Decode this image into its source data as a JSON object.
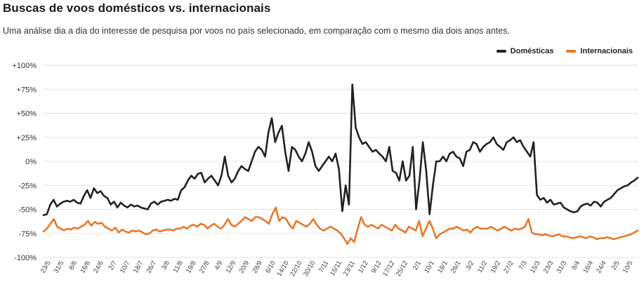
{
  "title": "Buscas de voos domésticos vs. internacionais",
  "subtitle": "Uma análise dia a dia do interesse de pesquisa por voos no país selecionado, em comparação com o mesmo dia dois anos antes.",
  "colors": {
    "domestic": "#222222",
    "international": "#e8782a",
    "grid": "#e2e2e2"
  },
  "chart_data": {
    "type": "line",
    "title": "Buscas de voos domésticos vs. internacionais",
    "subtitle": "Uma análise dia a dia do interesse de pesquisa por voos no país selecionado, em comparação com o mesmo dia dois anos antes.",
    "xlabel": "",
    "ylabel": "",
    "ylim": [
      -100,
      100
    ],
    "y_ticks": [
      100,
      75,
      50,
      25,
      0,
      -25,
      -50,
      -75,
      -100
    ],
    "y_tick_labels": [
      "+100%",
      "+75%",
      "+50%",
      "+25%",
      "0%",
      "-25%",
      "-50%",
      "-75%",
      "-100%"
    ],
    "x_tick_labels": [
      "23/5",
      "31/5",
      "8/6",
      "16/6",
      "24/6",
      "2/7",
      "10/7",
      "18/7",
      "26/7",
      "3/8",
      "11/8",
      "19/8",
      "27/8",
      "4/9",
      "12/9",
      "20/9",
      "28/9",
      "6/10",
      "14/10",
      "22/10",
      "30/10",
      "7/11",
      "15/11",
      "23/11",
      "1/12",
      "9/12",
      "17/12",
      "25/12",
      "2/1",
      "10/1",
      "18/1",
      "26/1",
      "3/2",
      "11/2",
      "19/2",
      "27/2",
      "7/3",
      "15/3",
      "23/3",
      "31/3",
      "8/4",
      "16/4",
      "24/4",
      "2/5",
      "10/5"
    ],
    "grid": true,
    "legend_position": "top-right",
    "series": [
      {
        "name": "Domésticas",
        "values": [
          -56,
          -55,
          -45,
          -40,
          -47,
          -44,
          -42,
          -41,
          -42,
          -40,
          -43,
          -44,
          -36,
          -30,
          -38,
          -28,
          -33,
          -31,
          -36,
          -38,
          -45,
          -42,
          -48,
          -43,
          -46,
          -48,
          -45,
          -47,
          -46,
          -48,
          -49,
          -50,
          -44,
          -42,
          -45,
          -42,
          -41,
          -40,
          -41,
          -39,
          -40,
          -30,
          -27,
          -20,
          -15,
          -18,
          -13,
          -12,
          -22,
          -18,
          -15,
          -20,
          -25,
          -15,
          5,
          -15,
          -22,
          -18,
          -10,
          -5,
          -8,
          -10,
          0,
          10,
          15,
          12,
          5,
          30,
          45,
          20,
          30,
          37,
          10,
          -10,
          15,
          12,
          5,
          0,
          8,
          20,
          10,
          -5,
          -10,
          -5,
          0,
          5,
          0,
          8,
          -8,
          -52,
          -25,
          -45,
          80,
          35,
          25,
          18,
          20,
          15,
          10,
          12,
          8,
          5,
          0,
          15,
          -10,
          -12,
          -20,
          0,
          -20,
          -15,
          15,
          -50,
          -20,
          20,
          -10,
          -55,
          -25,
          0,
          0,
          5,
          0,
          8,
          10,
          5,
          3,
          -5,
          10,
          12,
          20,
          18,
          10,
          15,
          18,
          20,
          25,
          18,
          15,
          12,
          20,
          22,
          25,
          20,
          22,
          15,
          10,
          5,
          20,
          -35,
          -40,
          -38,
          -43,
          -40,
          -45,
          -44,
          -43,
          -48,
          -50,
          -52,
          -53,
          -52,
          -47,
          -45,
          -44,
          -46,
          -42,
          -43,
          -47,
          -42,
          -40,
          -38,
          -34,
          -30,
          -28,
          -26,
          -25,
          -22,
          -20,
          -17
        ]
      },
      {
        "name": "Internacionais",
        "values": [
          -73,
          -70,
          -65,
          -60,
          -68,
          -70,
          -72,
          -70,
          -71,
          -69,
          -70,
          -68,
          -66,
          -62,
          -67,
          -63,
          -65,
          -64,
          -68,
          -70,
          -72,
          -69,
          -74,
          -71,
          -73,
          -74,
          -72,
          -73,
          -72,
          -74,
          -76,
          -75,
          -72,
          -71,
          -73,
          -72,
          -71,
          -71,
          -72,
          -70,
          -70,
          -68,
          -70,
          -67,
          -66,
          -68,
          -65,
          -66,
          -70,
          -67,
          -65,
          -68,
          -70,
          -66,
          -60,
          -66,
          -68,
          -65,
          -62,
          -58,
          -60,
          -62,
          -58,
          -58,
          -60,
          -62,
          -65,
          -55,
          -48,
          -62,
          -58,
          -60,
          -66,
          -70,
          -62,
          -64,
          -66,
          -68,
          -65,
          -60,
          -66,
          -70,
          -72,
          -70,
          -68,
          -70,
          -72,
          -75,
          -80,
          -86,
          -80,
          -84,
          -70,
          -58,
          -66,
          -68,
          -66,
          -68,
          -70,
          -66,
          -68,
          -70,
          -72,
          -66,
          -70,
          -72,
          -74,
          -68,
          -70,
          -72,
          -62,
          -78,
          -70,
          -62,
          -70,
          -80,
          -76,
          -74,
          -72,
          -70,
          -70,
          -68,
          -70,
          -72,
          -71,
          -74,
          -70,
          -68,
          -70,
          -70,
          -70,
          -68,
          -70,
          -72,
          -70,
          -68,
          -70,
          -72,
          -70,
          -71,
          -70,
          -68,
          -60,
          -74,
          -76,
          -76,
          -77,
          -76,
          -77,
          -78,
          -77,
          -76,
          -78,
          -78,
          -79,
          -80,
          -79,
          -78,
          -79,
          -80,
          -78,
          -79,
          -81,
          -80,
          -80,
          -79,
          -80,
          -81,
          -80,
          -79,
          -78,
          -77,
          -76,
          -74,
          -72
        ]
      }
    ]
  }
}
